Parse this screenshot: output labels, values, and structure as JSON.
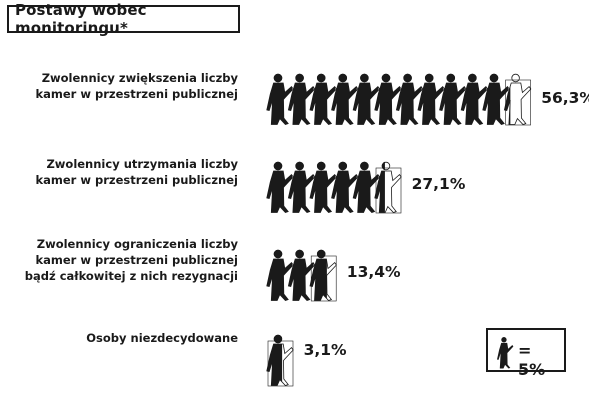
{
  "title": "Postawy wobec monitoringu*",
  "legend": {
    "text": "= 5%",
    "unit_value": 5
  },
  "colors": {
    "figure_fill": "#1a1a1a",
    "outline": "#1a1a1a",
    "background": "#ffffff"
  },
  "icon": "walking-person-icon",
  "chart_data": {
    "type": "pictograph",
    "title": "Postawy wobec monitoringu*",
    "unit": "%",
    "icon_value": 5,
    "categories": [
      [
        "Zwolennicy zwiększenia liczby",
        "kamer w przestrzeni publicznej"
      ],
      [
        "Zwolennicy utrzymania liczby",
        "kamer w przestrzeni publicznej"
      ],
      [
        "Zwolennicy ograniczenia liczby",
        "kamer w przestrzeni publicznej",
        "bądź całkowitej z nich rezygnacji"
      ],
      [
        "Osoby niezdecydowane"
      ]
    ],
    "values": [
      56.3,
      27.1,
      13.4,
      3.1
    ],
    "value_labels": [
      "56,3%",
      "27,1%",
      "13,4%",
      "3,1%"
    ]
  }
}
